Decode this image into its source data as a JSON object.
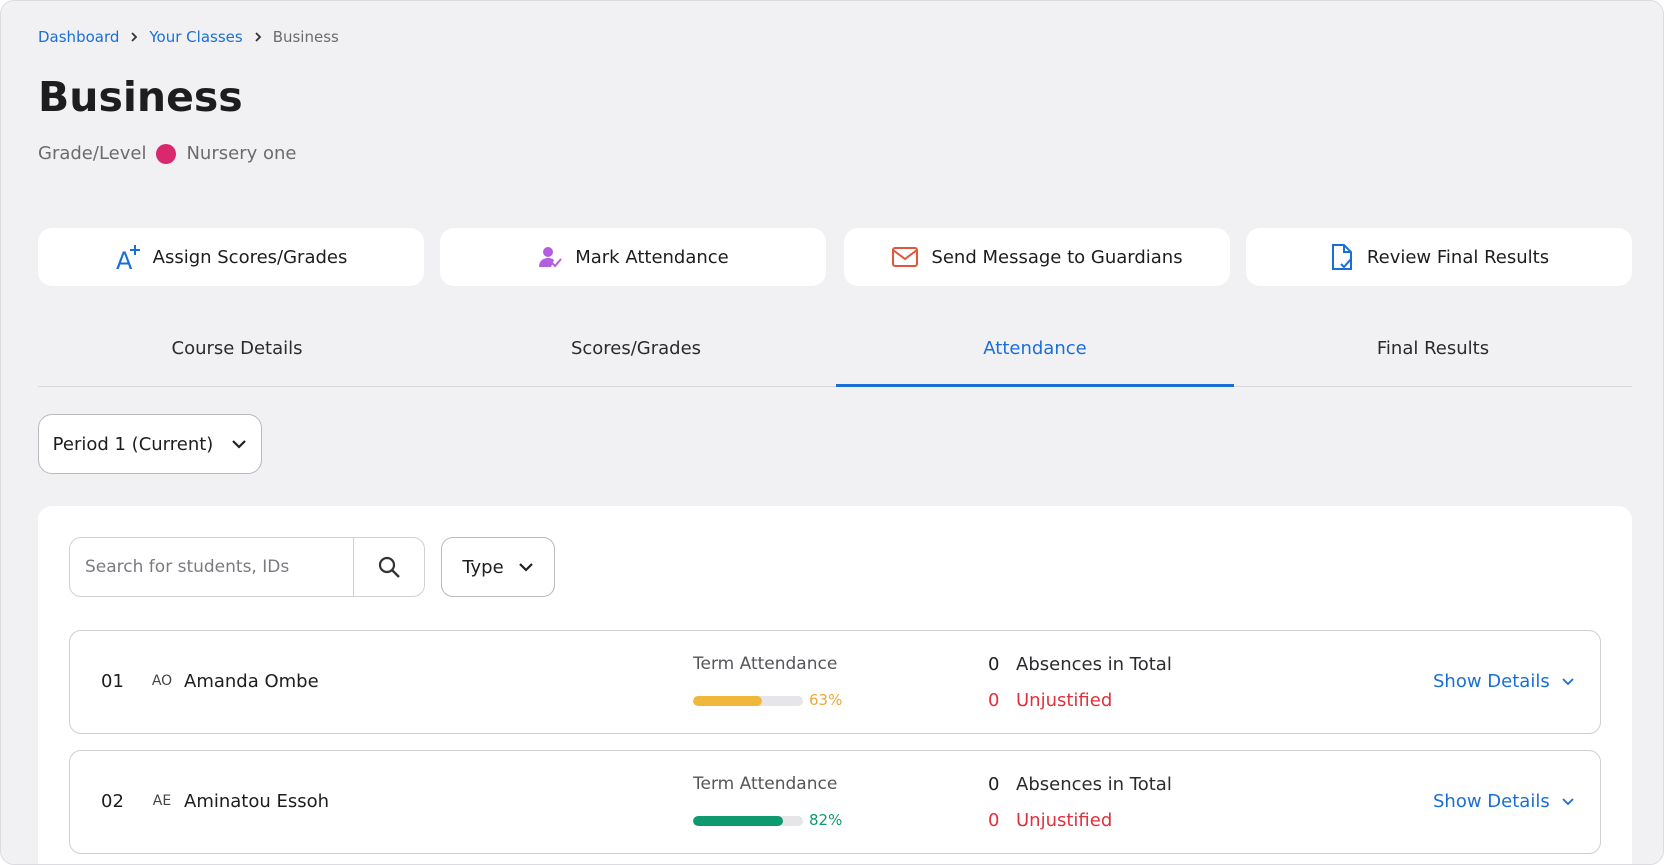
{
  "breadcrumbs": [
    "Dashboard",
    "Your Classes",
    "Business"
  ],
  "title": "Business",
  "grade_label": "Grade/Level",
  "grade_value": "Nursery one",
  "actions": [
    "Assign Scores/Grades",
    "Mark Attendance",
    "Send Message to Guardians",
    "Review Final Results"
  ],
  "tabs": [
    "Course Details",
    "Scores/Grades",
    "Attendance",
    "Final Results"
  ],
  "period": "Period 1 (Current)",
  "search_placeholder": "Search for students, IDs",
  "type_filter": "Type",
  "students": [
    {
      "number": "01",
      "initials": "AO",
      "name": "Amanda Ombe",
      "attendance_title": "Term Attendance",
      "attendance": 63,
      "attendance_label": "63%",
      "absences": 0,
      "absences_label": "Absences in Total",
      "unjustified": 0,
      "unjustified_label": "Unjustified",
      "details": "Show Details"
    },
    {
      "number": "02",
      "initials": "AE",
      "name": "Aminatou Essoh",
      "attendance_title": "Term Attendance",
      "attendance": 82,
      "attendance_label": "82%",
      "absences": 0,
      "absences_label": "Absences in Total",
      "unjustified": 0,
      "unjustified_label": "Unjustified",
      "details": "Show Details"
    }
  ]
}
